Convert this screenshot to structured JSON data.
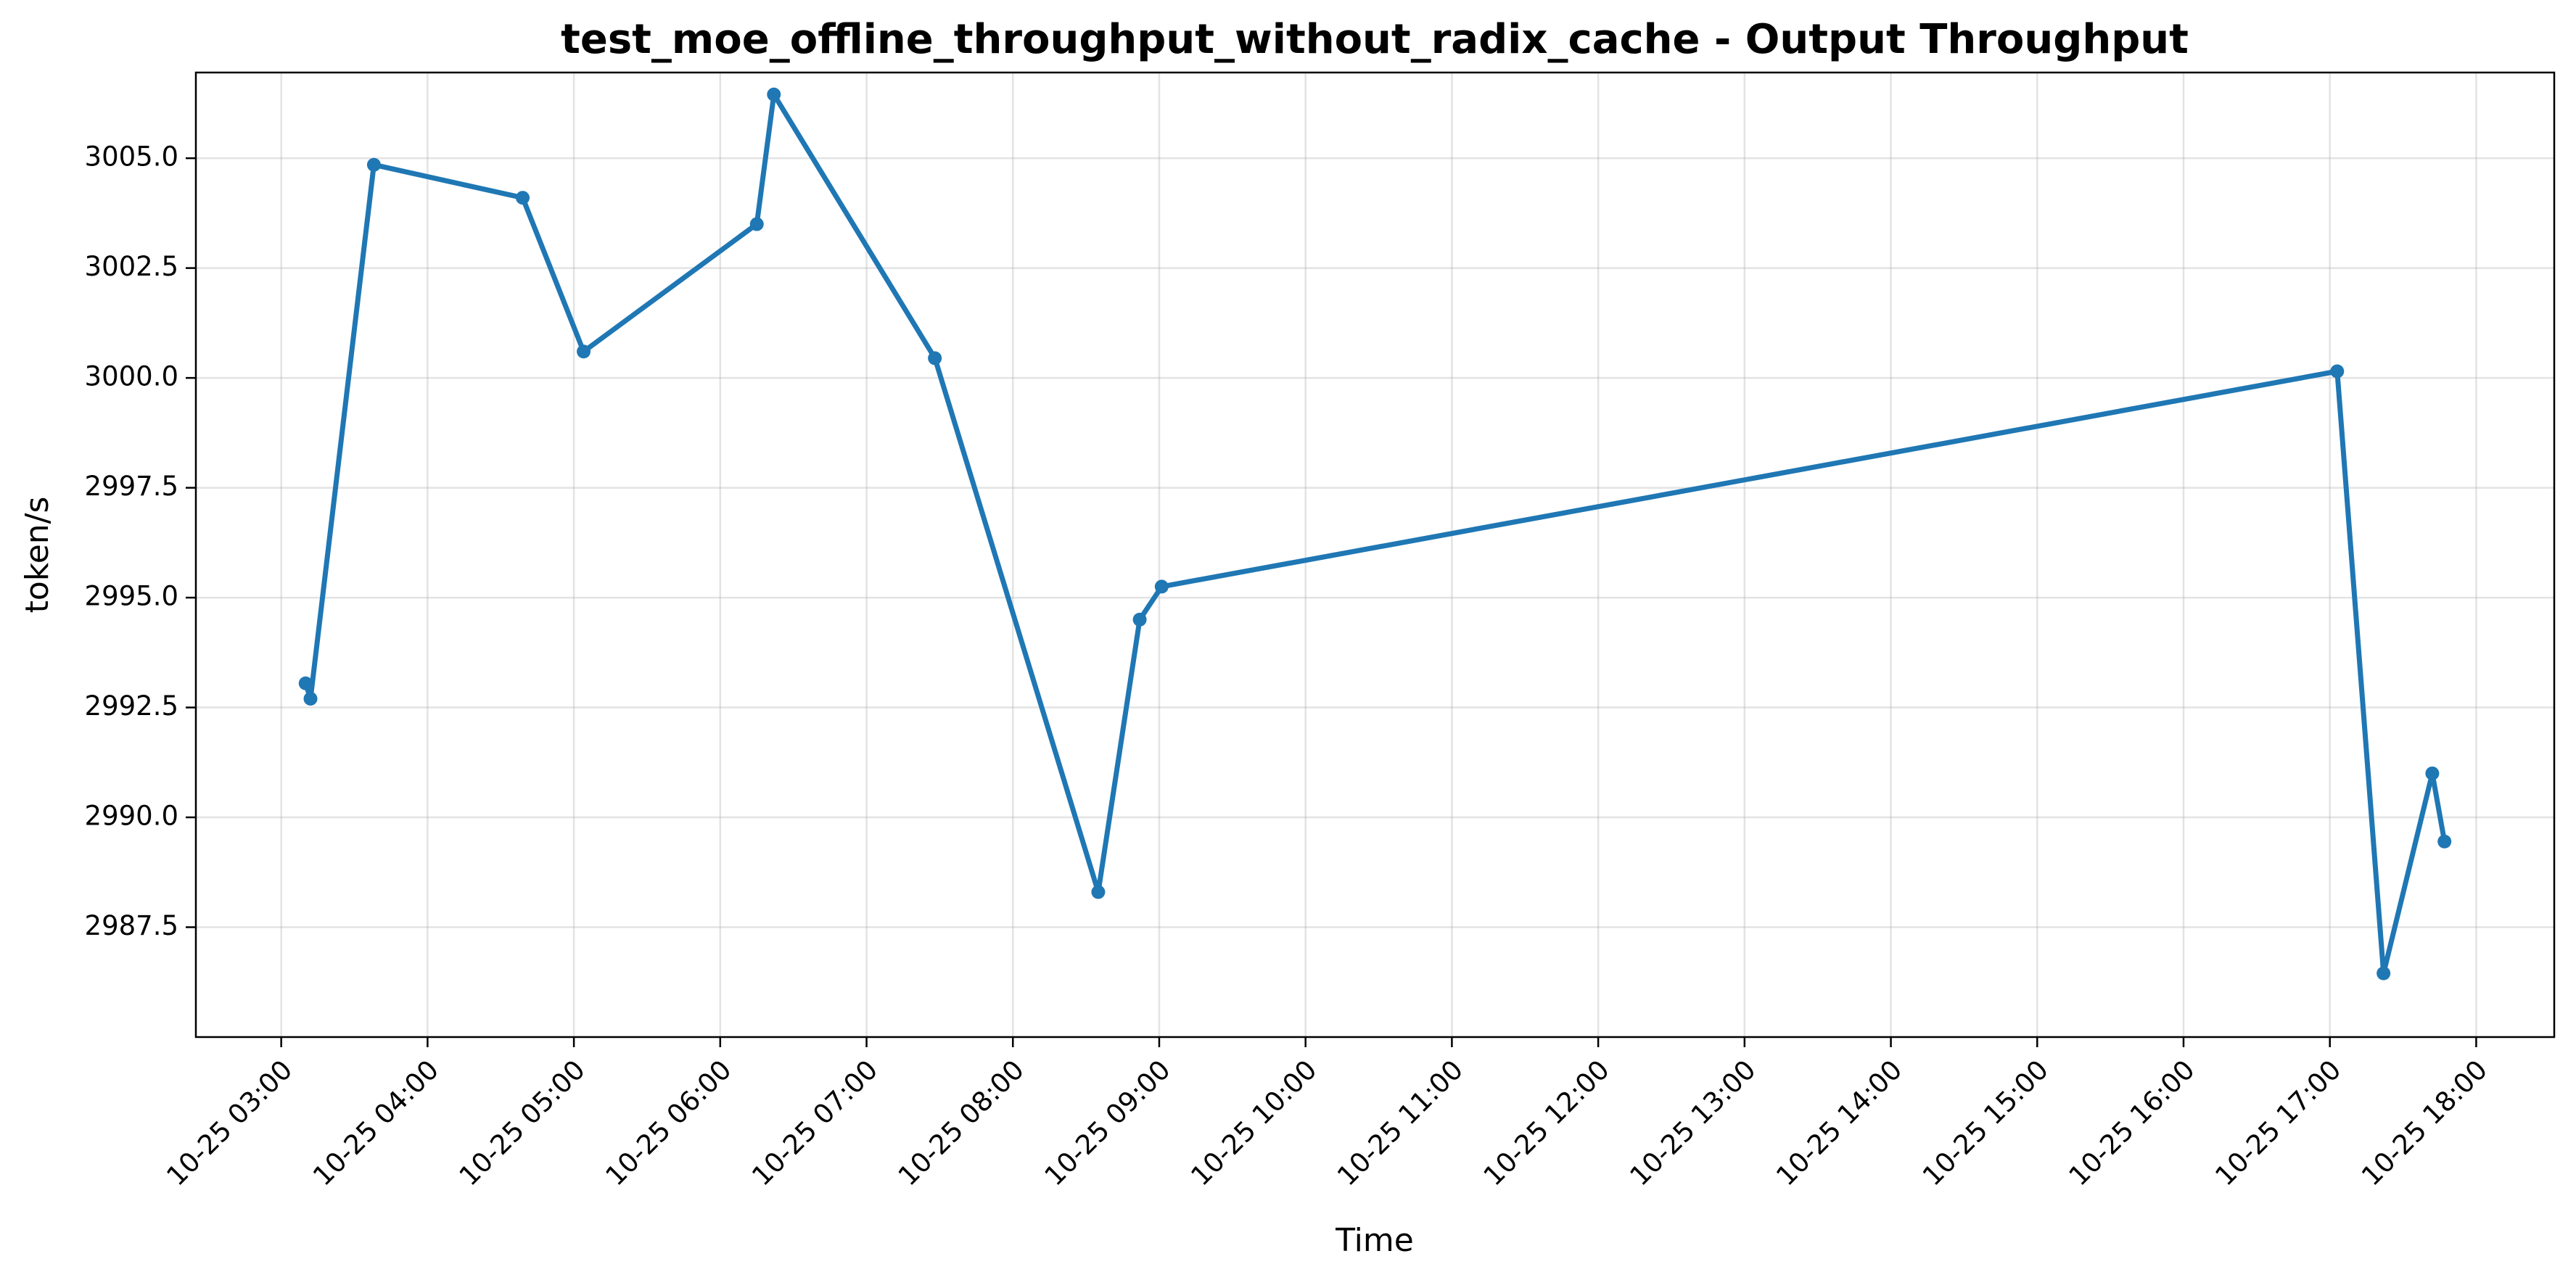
{
  "chart_data": {
    "type": "line",
    "title": "test_moe_offline_throughput_without_radix_cache - Output Throughput",
    "xlabel": "Time",
    "ylabel": "token/s",
    "color": "#1f77b4",
    "grid": true,
    "markers": true,
    "x_ticks": [
      "10-25 03:00",
      "10-25 04:00",
      "10-25 05:00",
      "10-25 06:00",
      "10-25 07:00",
      "10-25 08:00",
      "10-25 09:00",
      "10-25 10:00",
      "10-25 11:00",
      "10-25 12:00",
      "10-25 13:00",
      "10-25 14:00",
      "10-25 15:00",
      "10-25 16:00",
      "10-25 17:00",
      "10-25 18:00"
    ],
    "y_ticks": [
      "2987.5",
      "2990.0",
      "2992.5",
      "2995.0",
      "2997.5",
      "3000.0",
      "3002.5",
      "3005.0"
    ],
    "xlim": [
      "10-25 02:25",
      "10-25 18:32"
    ],
    "ylim": [
      2985.0,
      3006.95
    ],
    "series": [
      {
        "points": [
          {
            "x": "10-25 03:10",
            "y": 2993.05
          },
          {
            "x": "10-25 03:12",
            "y": 2992.7
          },
          {
            "x": "10-25 03:38",
            "y": 3004.85
          },
          {
            "x": "10-25 04:39",
            "y": 3004.1
          },
          {
            "x": "10-25 05:04",
            "y": 3000.6
          },
          {
            "x": "10-25 06:15",
            "y": 3003.5
          },
          {
            "x": "10-25 06:22",
            "y": 3006.45
          },
          {
            "x": "10-25 07:28",
            "y": 3000.45
          },
          {
            "x": "10-25 08:35",
            "y": 2988.3
          },
          {
            "x": "10-25 08:52",
            "y": 2994.5
          },
          {
            "x": "10-25 09:01",
            "y": 2995.25
          },
          {
            "x": "10-25 17:03",
            "y": 3000.15
          },
          {
            "x": "10-25 17:22",
            "y": 2986.45
          },
          {
            "x": "10-25 17:42",
            "y": 2991.0
          },
          {
            "x": "10-25 17:47",
            "y": 2989.45
          }
        ]
      }
    ]
  }
}
